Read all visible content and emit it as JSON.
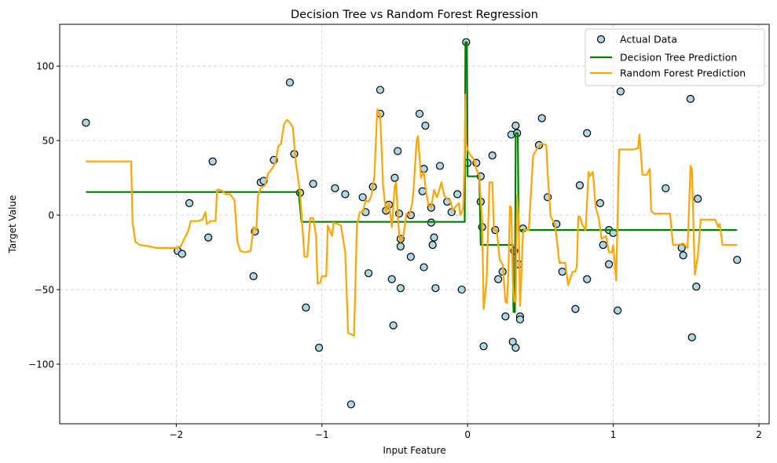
{
  "chart_data": {
    "type": "scatter",
    "title": "Decision Tree vs Random Forest Regression",
    "xlabel": "Input Feature",
    "ylabel": "Target Value",
    "xlim": [
      -2.8,
      2.07
    ],
    "ylim": [
      -140,
      128
    ],
    "xticks": [
      -2,
      -1,
      0,
      1,
      2
    ],
    "xtick_labels": [
      "−2",
      "−1",
      "0",
      "1",
      "2"
    ],
    "yticks": [
      -100,
      -50,
      0,
      50,
      100
    ],
    "ytick_labels": [
      "−100",
      "−50",
      "0",
      "50",
      "100"
    ],
    "grid": true,
    "legend_position": "top-right",
    "legend": [
      "Actual Data",
      "Decision Tree Prediction",
      "Random Forest Prediction"
    ],
    "colors": {
      "scatter_face": "#add8e6",
      "scatter_edge": "#000000",
      "decision_tree": "#008000",
      "random_forest": "#ffa500",
      "grid": "#cccccc"
    },
    "series": [
      {
        "name": "Actual Data",
        "type": "scatter",
        "points": [
          [
            -2.62,
            62
          ],
          [
            -1.99,
            -24
          ],
          [
            -1.96,
            -26
          ],
          [
            -1.91,
            8
          ],
          [
            -1.78,
            -15
          ],
          [
            -1.75,
            36
          ],
          [
            -1.47,
            -41
          ],
          [
            -1.46,
            -11
          ],
          [
            -1.42,
            22
          ],
          [
            -1.4,
            23
          ],
          [
            -1.33,
            37
          ],
          [
            -1.22,
            89
          ],
          [
            -1.19,
            41
          ],
          [
            -1.15,
            15
          ],
          [
            -1.11,
            -62
          ],
          [
            -1.06,
            21
          ],
          [
            -1.02,
            -89
          ],
          [
            -0.91,
            18
          ],
          [
            -0.84,
            14
          ],
          [
            -0.8,
            -127
          ],
          [
            -0.72,
            12
          ],
          [
            -0.7,
            2
          ],
          [
            -0.68,
            -39
          ],
          [
            -0.65,
            19
          ],
          [
            -0.6,
            84
          ],
          [
            -0.6,
            68
          ],
          [
            -0.56,
            3
          ],
          [
            -0.54,
            7
          ],
          [
            -0.52,
            -43
          ],
          [
            -0.51,
            -74
          ],
          [
            -0.5,
            25
          ],
          [
            -0.48,
            43
          ],
          [
            -0.47,
            1
          ],
          [
            -0.46,
            -16
          ],
          [
            -0.46,
            -21
          ],
          [
            -0.46,
            -49
          ],
          [
            -0.39,
            0
          ],
          [
            -0.39,
            -28
          ],
          [
            -0.33,
            68
          ],
          [
            -0.31,
            16
          ],
          [
            -0.3,
            31
          ],
          [
            -0.3,
            -35
          ],
          [
            -0.29,
            60
          ],
          [
            -0.25,
            5
          ],
          [
            -0.25,
            -5
          ],
          [
            -0.24,
            -20
          ],
          [
            -0.23,
            -15
          ],
          [
            -0.22,
            -49
          ],
          [
            -0.19,
            33
          ],
          [
            -0.14,
            9
          ],
          [
            -0.11,
            2
          ],
          [
            -0.07,
            14
          ],
          [
            -0.04,
            -50
          ],
          [
            -0.01,
            116
          ],
          [
            0.0,
            35
          ],
          [
            0.06,
            35
          ],
          [
            0.09,
            26
          ],
          [
            0.09,
            9
          ],
          [
            0.1,
            -8
          ],
          [
            0.11,
            -88
          ],
          [
            0.17,
            40
          ],
          [
            0.19,
            -10
          ],
          [
            0.21,
            -43
          ],
          [
            0.24,
            -38
          ],
          [
            0.26,
            -68
          ],
          [
            0.3,
            54
          ],
          [
            0.31,
            -85
          ],
          [
            0.32,
            -24
          ],
          [
            0.33,
            -89
          ],
          [
            0.33,
            60
          ],
          [
            0.34,
            55
          ],
          [
            0.35,
            -33
          ],
          [
            0.36,
            -68
          ],
          [
            0.36,
            -70
          ],
          [
            0.38,
            -9
          ],
          [
            0.49,
            47
          ],
          [
            0.51,
            65
          ],
          [
            0.55,
            12
          ],
          [
            0.61,
            -6
          ],
          [
            0.65,
            -38
          ],
          [
            0.74,
            -63
          ],
          [
            0.77,
            20
          ],
          [
            0.82,
            55
          ],
          [
            0.82,
            -43
          ],
          [
            0.91,
            8
          ],
          [
            0.93,
            -20
          ],
          [
            0.97,
            -10
          ],
          [
            0.97,
            -33
          ],
          [
            1.0,
            -12
          ],
          [
            1.03,
            -64
          ],
          [
            1.05,
            83
          ],
          [
            1.36,
            18
          ],
          [
            1.47,
            -22
          ],
          [
            1.48,
            -27
          ],
          [
            1.53,
            78
          ],
          [
            1.54,
            -82
          ],
          [
            1.57,
            -48
          ],
          [
            1.58,
            11
          ],
          [
            1.85,
            -30
          ]
        ]
      },
      {
        "name": "Decision Tree Prediction",
        "type": "line",
        "points": [
          [
            -2.62,
            15.5
          ],
          [
            -1.16,
            15.5
          ],
          [
            -1.14,
            -4.5
          ],
          [
            -0.02,
            -4.5
          ],
          [
            -0.015,
            116
          ],
          [
            -0.005,
            116
          ],
          [
            0.0,
            26
          ],
          [
            0.08,
            26
          ],
          [
            0.09,
            -20
          ],
          [
            0.31,
            -20
          ],
          [
            0.315,
            -65
          ],
          [
            0.325,
            -65
          ],
          [
            0.33,
            55
          ],
          [
            0.345,
            55
          ],
          [
            0.35,
            -10
          ],
          [
            1.85,
            -10
          ]
        ]
      },
      {
        "name": "Random Forest Prediction",
        "type": "line",
        "points": [
          [
            -2.62,
            36
          ],
          [
            -2.31,
            36
          ],
          [
            -2.3,
            -5
          ],
          [
            -2.28,
            -18
          ],
          [
            -2.25,
            -20
          ],
          [
            -2.18,
            -21
          ],
          [
            -2.14,
            -22
          ],
          [
            -2.0,
            -22
          ],
          [
            -1.97,
            -21
          ],
          [
            -1.92,
            -11
          ],
          [
            -1.9,
            -4
          ],
          [
            -1.85,
            -4
          ],
          [
            -1.82,
            -3
          ],
          [
            -1.8,
            2
          ],
          [
            -1.79,
            -6
          ],
          [
            -1.76,
            -4
          ],
          [
            -1.73,
            -4
          ],
          [
            -1.72,
            17
          ],
          [
            -1.7,
            17
          ],
          [
            -1.68,
            16
          ],
          [
            -1.66,
            14
          ],
          [
            -1.63,
            14
          ],
          [
            -1.6,
            10
          ],
          [
            -1.58,
            -18
          ],
          [
            -1.56,
            -24
          ],
          [
            -1.53,
            -25
          ],
          [
            -1.49,
            -24
          ],
          [
            -1.47,
            -8
          ],
          [
            -1.45,
            -10
          ],
          [
            -1.44,
            13
          ],
          [
            -1.42,
            18
          ],
          [
            -1.39,
            20
          ],
          [
            -1.37,
            28
          ],
          [
            -1.35,
            30
          ],
          [
            -1.32,
            35
          ],
          [
            -1.3,
            46
          ],
          [
            -1.28,
            48
          ],
          [
            -1.26,
            61
          ],
          [
            -1.24,
            64
          ],
          [
            -1.22,
            62
          ],
          [
            -1.2,
            59
          ],
          [
            -1.18,
            36
          ],
          [
            -1.15,
            15
          ],
          [
            -1.12,
            -28
          ],
          [
            -1.1,
            -28
          ],
          [
            -1.08,
            -2
          ],
          [
            -1.06,
            -2
          ],
          [
            -1.04,
            -14
          ],
          [
            -1.03,
            -46
          ],
          [
            -1.01,
            -45
          ],
          [
            -1.0,
            -41
          ],
          [
            -0.97,
            -41
          ],
          [
            -0.96,
            -7
          ],
          [
            -0.93,
            -14
          ],
          [
            -0.92,
            -5
          ],
          [
            -0.89,
            -6
          ],
          [
            -0.87,
            -7
          ],
          [
            -0.84,
            -25
          ],
          [
            -0.82,
            -79
          ],
          [
            -0.8,
            -80
          ],
          [
            -0.78,
            -81
          ],
          [
            -0.76,
            -7
          ],
          [
            -0.74,
            2
          ],
          [
            -0.72,
            2
          ],
          [
            -0.7,
            10
          ],
          [
            -0.68,
            9
          ],
          [
            -0.66,
            13
          ],
          [
            -0.64,
            26
          ],
          [
            -0.62,
            71
          ],
          [
            -0.6,
            67
          ],
          [
            -0.58,
            20
          ],
          [
            -0.56,
            2
          ],
          [
            -0.54,
            8
          ],
          [
            -0.52,
            -8
          ],
          [
            -0.5,
            20
          ],
          [
            -0.49,
            22
          ],
          [
            -0.48,
            0
          ],
          [
            -0.47,
            -12
          ],
          [
            -0.46,
            -18
          ],
          [
            -0.44,
            -13
          ],
          [
            -0.42,
            1
          ],
          [
            -0.4,
            0
          ],
          [
            -0.38,
            8
          ],
          [
            -0.37,
            19
          ],
          [
            -0.35,
            50
          ],
          [
            -0.34,
            53
          ],
          [
            -0.32,
            25
          ],
          [
            -0.3,
            29
          ],
          [
            -0.29,
            19
          ],
          [
            -0.27,
            7
          ],
          [
            -0.25,
            5
          ],
          [
            -0.23,
            17
          ],
          [
            -0.21,
            12
          ],
          [
            -0.2,
            15
          ],
          [
            -0.18,
            22
          ],
          [
            -0.16,
            13
          ],
          [
            -0.14,
            11
          ],
          [
            -0.12,
            10
          ],
          [
            -0.1,
            3
          ],
          [
            -0.08,
            6
          ],
          [
            -0.06,
            8
          ],
          [
            -0.05,
            0
          ],
          [
            -0.04,
            2
          ],
          [
            -0.03,
            5
          ],
          [
            -0.02,
            40
          ],
          [
            -0.015,
            81
          ],
          [
            -0.01,
            48
          ],
          [
            0.0,
            44
          ],
          [
            0.01,
            42
          ],
          [
            0.02,
            40
          ],
          [
            0.04,
            38
          ],
          [
            0.06,
            31
          ],
          [
            0.08,
            26
          ],
          [
            0.1,
            -4
          ],
          [
            0.11,
            -63
          ],
          [
            0.13,
            -45
          ],
          [
            0.15,
            22
          ],
          [
            0.17,
            22
          ],
          [
            0.18,
            -10
          ],
          [
            0.2,
            -10
          ],
          [
            0.22,
            -30
          ],
          [
            0.24,
            -33
          ],
          [
            0.26,
            -58
          ],
          [
            0.27,
            -59
          ],
          [
            0.28,
            -38
          ],
          [
            0.29,
            6
          ],
          [
            0.3,
            5
          ],
          [
            0.31,
            -45
          ],
          [
            0.32,
            -58
          ],
          [
            0.33,
            -58
          ],
          [
            0.34,
            13
          ],
          [
            0.35,
            -3
          ],
          [
            0.36,
            -61
          ],
          [
            0.37,
            -38
          ],
          [
            0.38,
            -12
          ],
          [
            0.39,
            -10
          ],
          [
            0.42,
            -10
          ],
          [
            0.45,
            40
          ],
          [
            0.48,
            45
          ],
          [
            0.51,
            48
          ],
          [
            0.54,
            47
          ],
          [
            0.55,
            27
          ],
          [
            0.57,
            -1
          ],
          [
            0.6,
            -6
          ],
          [
            0.63,
            -32
          ],
          [
            0.67,
            -32
          ],
          [
            0.69,
            -47
          ],
          [
            0.72,
            -38
          ],
          [
            0.74,
            -38
          ],
          [
            0.75,
            -34
          ],
          [
            0.76,
            -1
          ],
          [
            0.77,
            -1
          ],
          [
            0.79,
            -7
          ],
          [
            0.81,
            -10
          ],
          [
            0.83,
            29
          ],
          [
            0.84,
            26
          ],
          [
            0.86,
            29
          ],
          [
            0.88,
            5
          ],
          [
            0.9,
            -2
          ],
          [
            0.92,
            -16
          ],
          [
            0.95,
            -14
          ],
          [
            0.97,
            -25
          ],
          [
            0.99,
            -25
          ],
          [
            1.0,
            -20
          ],
          [
            1.02,
            -44
          ],
          [
            1.04,
            44
          ],
          [
            1.08,
            44
          ],
          [
            1.14,
            44
          ],
          [
            1.17,
            45
          ],
          [
            1.18,
            54
          ],
          [
            1.2,
            27
          ],
          [
            1.23,
            27
          ],
          [
            1.25,
            31
          ],
          [
            1.26,
            3
          ],
          [
            1.28,
            1
          ],
          [
            1.3,
            1
          ],
          [
            1.35,
            1
          ],
          [
            1.39,
            1
          ],
          [
            1.41,
            -20
          ],
          [
            1.44,
            -20
          ],
          [
            1.48,
            -19
          ],
          [
            1.51,
            -22
          ],
          [
            1.53,
            33
          ],
          [
            1.54,
            31
          ],
          [
            1.56,
            -40
          ],
          [
            1.58,
            -28
          ],
          [
            1.6,
            -3
          ],
          [
            1.65,
            -3
          ],
          [
            1.7,
            -3
          ],
          [
            1.72,
            -8
          ],
          [
            1.73,
            -6
          ],
          [
            1.75,
            -20
          ],
          [
            1.8,
            -20
          ],
          [
            1.85,
            -20
          ]
        ]
      }
    ]
  }
}
